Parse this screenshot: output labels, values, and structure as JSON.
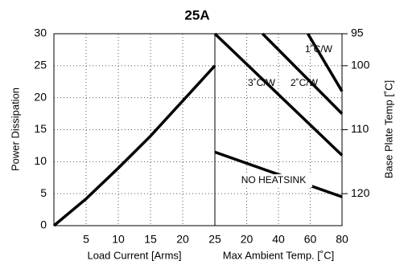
{
  "chart_data": [
    {
      "type": "line",
      "title": "25A",
      "y_label": "Power Dissipation",
      "x_label": "Load Current  [Arms]",
      "x": [
        0,
        5,
        10,
        15,
        20,
        25
      ],
      "xlim": [
        0,
        25
      ],
      "xticks": [
        5,
        10,
        15,
        20,
        25
      ],
      "ylim": [
        0,
        30
      ],
      "yticks": [
        0,
        5,
        10,
        15,
        20,
        25,
        30
      ],
      "grid": true,
      "series": [
        {
          "color": "#000000",
          "values": [
            0,
            4.2,
            9,
            14,
            19.5,
            25
          ]
        }
      ]
    },
    {
      "type": "line",
      "x_label": "Max Ambient Temp. [˚C]",
      "y2_label": "Base Plate Temp [˚C]",
      "xlim": [
        0,
        80
      ],
      "xticks": [
        20,
        40,
        60,
        80
      ],
      "ylim": [
        0,
        30
      ],
      "y2lim": [
        125,
        95
      ],
      "y2ticks": [
        95,
        100,
        110,
        120
      ],
      "grid": true,
      "series": [
        {
          "name": "NO HEATSINK",
          "color": "#000000",
          "x": [
            0,
            80
          ],
          "values": [
            11.5,
            4.5
          ]
        },
        {
          "name": "3˚C/W",
          "color": "#000000",
          "x": [
            0,
            80
          ],
          "values": [
            30,
            11
          ]
        },
        {
          "name": "2˚C/W",
          "color": "#000000",
          "x": [
            30,
            80
          ],
          "values": [
            30,
            17.5
          ]
        },
        {
          "name": "1˚C/W",
          "color": "#000000",
          "x": [
            58.5,
            80
          ],
          "values": [
            30,
            21
          ]
        }
      ]
    }
  ]
}
